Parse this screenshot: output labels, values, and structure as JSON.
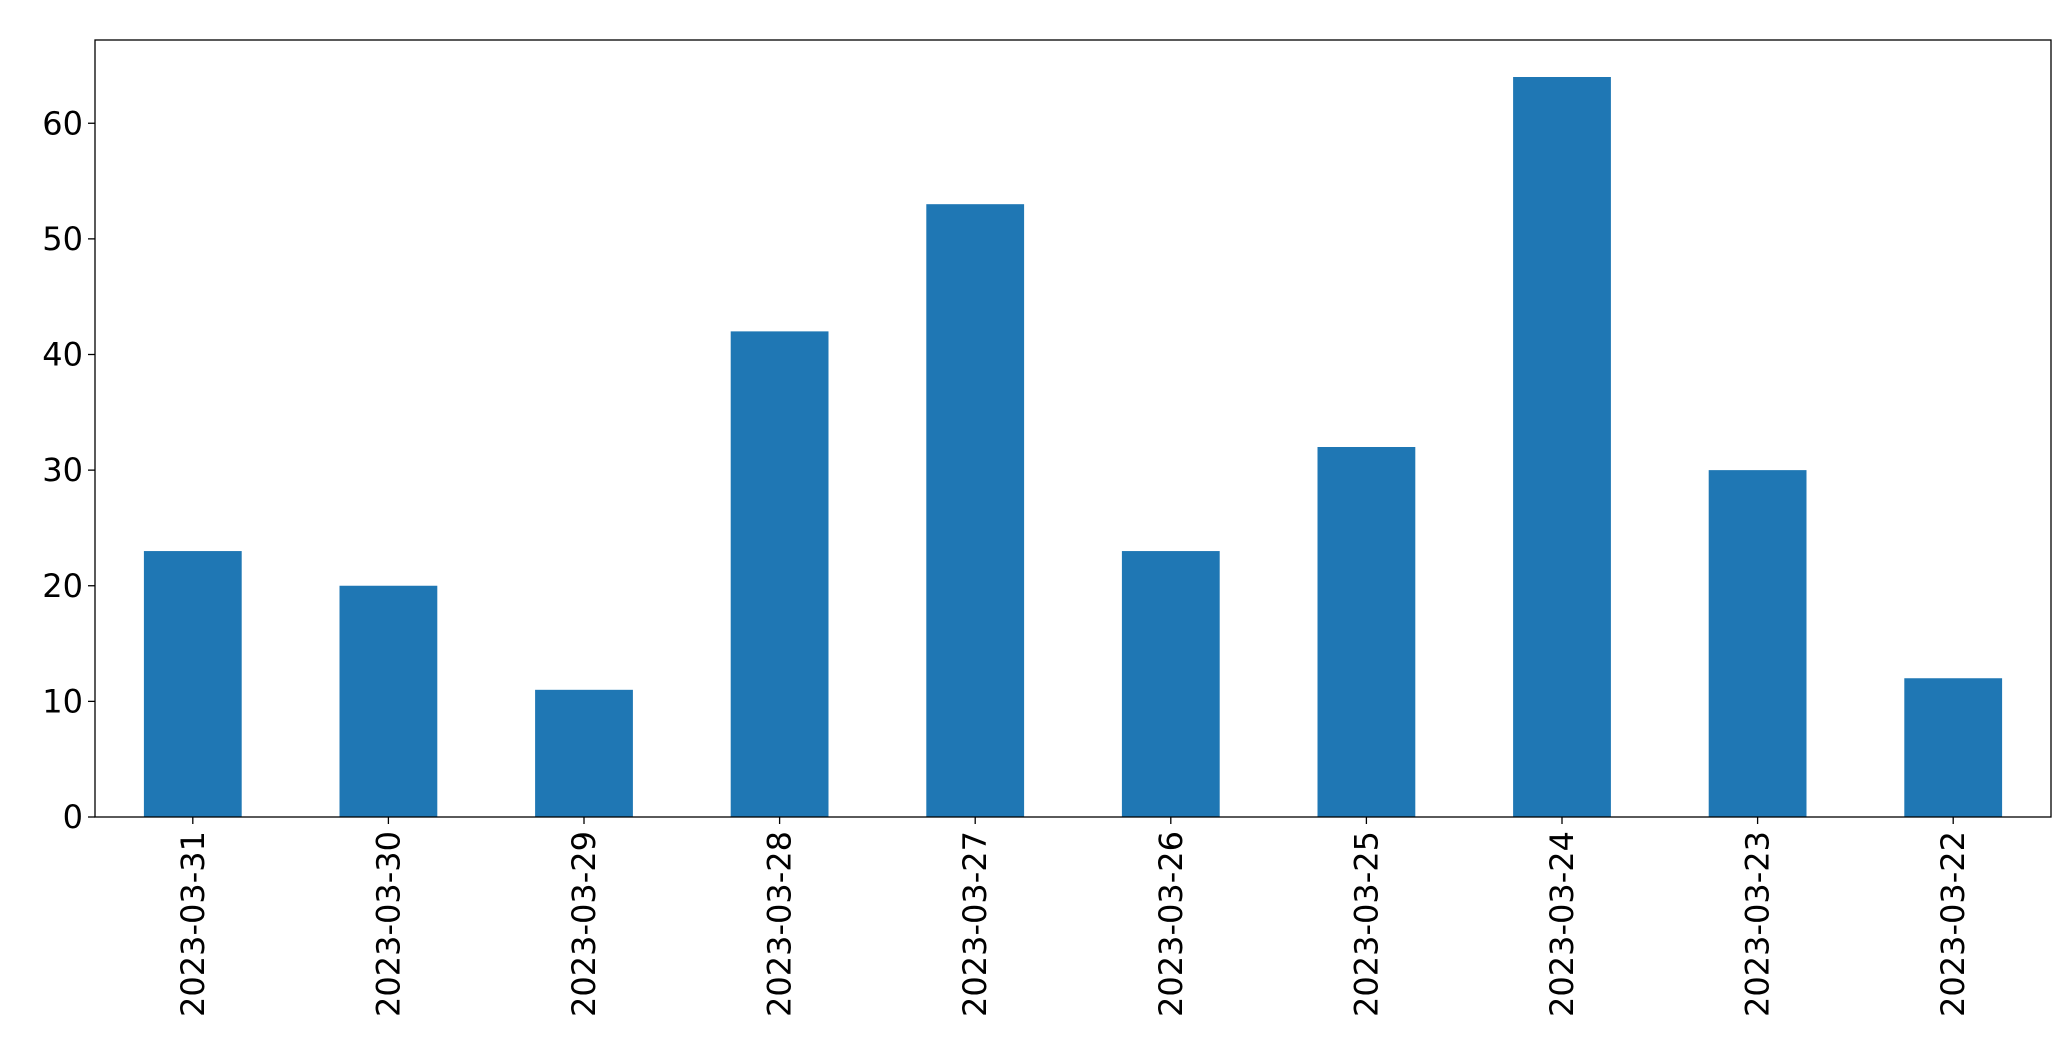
{
  "chart_data": {
    "type": "bar",
    "categories": [
      "2023-03-31",
      "2023-03-30",
      "2023-03-29",
      "2023-03-28",
      "2023-03-27",
      "2023-03-26",
      "2023-03-25",
      "2023-03-24",
      "2023-03-23",
      "2023-03-22"
    ],
    "values": [
      23,
      20,
      11,
      42,
      53,
      23,
      32,
      64,
      30,
      12
    ],
    "color": "#1f77b4",
    "ylim": [
      0,
      67.2
    ],
    "yticks": [
      0,
      10,
      20,
      30,
      40,
      50,
      60
    ],
    "grid": false
  }
}
